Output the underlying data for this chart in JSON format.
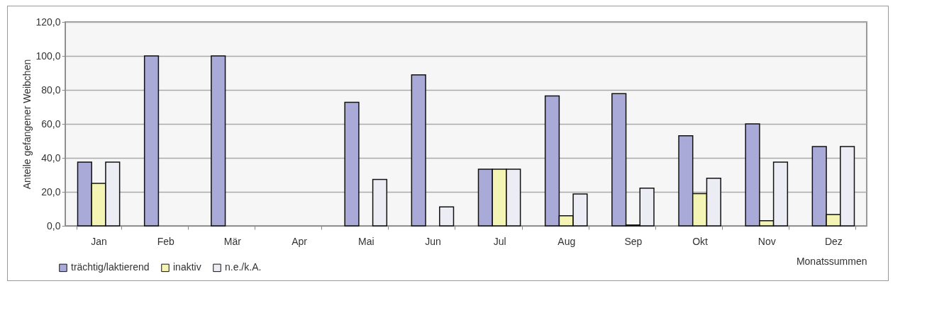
{
  "chart_data": {
    "type": "bar",
    "xlabel": "Monatssummen",
    "ylabel": "Anteile gefangener Weibchen",
    "categories": [
      "Jan",
      "Feb",
      "Mär",
      "Apr",
      "Mai",
      "Jun",
      "Jul",
      "Aug",
      "Sep",
      "Okt",
      "Nov",
      "Dez"
    ],
    "series": [
      {
        "name": "trächtig/laktierend",
        "color": "#aaaad8",
        "values": [
          37.5,
          100,
          100,
          null,
          72.7,
          88.9,
          33.3,
          76.5,
          77.8,
          53,
          60,
          46.7
        ]
      },
      {
        "name": "inaktiv",
        "color": "#f4f4b4",
        "values": [
          25,
          null,
          null,
          null,
          null,
          null,
          33.3,
          5.9,
          0.5,
          19,
          3,
          6.7
        ]
      },
      {
        "name": "n.e./k.A.",
        "color": "#ececf4",
        "values": [
          37.5,
          null,
          null,
          null,
          27.3,
          11.1,
          33.3,
          18.8,
          22.2,
          28,
          37.5,
          46.7
        ]
      }
    ],
    "ylim": [
      0,
      120
    ],
    "yticks": [
      {
        "value": 0,
        "label": "0,0"
      },
      {
        "value": 20,
        "label": "20,0"
      },
      {
        "value": 40,
        "label": "40,0"
      },
      {
        "value": 60,
        "label": "60,0"
      },
      {
        "value": 80,
        "label": "80,0"
      },
      {
        "value": 100,
        "label": "100,0"
      },
      {
        "value": 120,
        "label": "120,0"
      }
    ],
    "grid": "y",
    "legend": "bottom left"
  }
}
